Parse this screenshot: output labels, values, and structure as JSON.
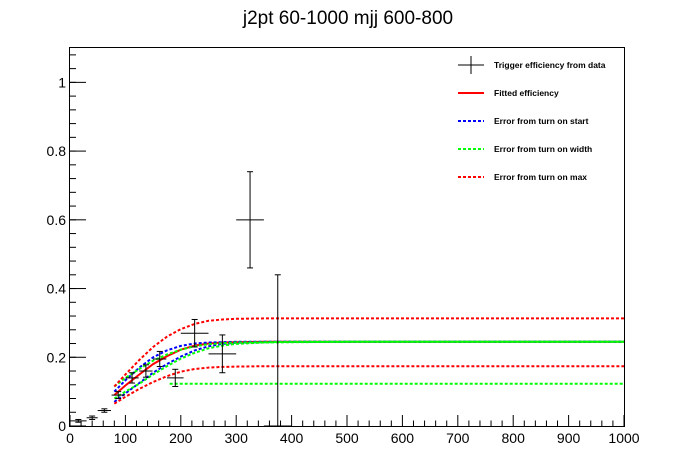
{
  "chart_data": {
    "type": "scatter",
    "title": "j2pt 60-1000 mjj 600-800",
    "xlabel": "",
    "ylabel": "",
    "xlim": [
      0,
      1000
    ],
    "ylim": [
      0,
      1.1
    ],
    "x_ticks": [
      0,
      100,
      200,
      300,
      400,
      500,
      600,
      700,
      800,
      900,
      1000
    ],
    "y_ticks": [
      0,
      0.2,
      0.4,
      0.6,
      0.8,
      1
    ],
    "legend_position": "top-right",
    "grid": false,
    "series": [
      {
        "name": "Trigger efficiency from data",
        "style": "errorbar",
        "color": "#000000",
        "points": [
          {
            "x": 15,
            "y": 0.015,
            "xerr": 15,
            "yerr": 0.004
          },
          {
            "x": 40,
            "y": 0.024,
            "xerr": 10,
            "yerr": 0.005
          },
          {
            "x": 62,
            "y": 0.045,
            "xerr": 12,
            "yerr": 0.005
          },
          {
            "x": 87,
            "y": 0.09,
            "xerr": 12,
            "yerr": 0.01
          },
          {
            "x": 112,
            "y": 0.14,
            "xerr": 12,
            "yerr": 0.015
          },
          {
            "x": 137,
            "y": 0.16,
            "xerr": 12,
            "yerr": 0.018
          },
          {
            "x": 162,
            "y": 0.195,
            "xerr": 12,
            "yerr": 0.022
          },
          {
            "x": 190,
            "y": 0.14,
            "xerr": 15,
            "yerr": 0.025
          },
          {
            "x": 225,
            "y": 0.27,
            "xerr": 25,
            "yerr": 0.04
          },
          {
            "x": 275,
            "y": 0.21,
            "xerr": 25,
            "yerr": 0.055
          },
          {
            "x": 325,
            "y": 0.6,
            "xerr": 25,
            "yerr": 0.14
          },
          {
            "x": 375,
            "y": 0.0,
            "xerr": 25,
            "yerr": 0.44
          }
        ]
      },
      {
        "name": "Fitted efficiency",
        "style": "solid",
        "color": "#ff0000",
        "x": [
          80,
          100,
          125,
          150,
          175,
          200,
          225,
          250,
          275,
          300,
          350,
          400,
          500,
          700,
          1000
        ],
        "y": [
          0.09,
          0.118,
          0.15,
          0.18,
          0.203,
          0.222,
          0.234,
          0.24,
          0.243,
          0.244,
          0.245,
          0.245,
          0.245,
          0.245,
          0.245
        ]
      },
      {
        "name": "Error from turn on start",
        "style": "dotted",
        "color": "#0000ff",
        "x": [
          80,
          100,
          125,
          150,
          175,
          200,
          225,
          250,
          275,
          300,
          350,
          400,
          500,
          700,
          1000
        ],
        "y": [
          0.1,
          0.133,
          0.17,
          0.2,
          0.22,
          0.233,
          0.24,
          0.243,
          0.244,
          0.245,
          0.245,
          0.245,
          0.245,
          0.245,
          0.245
        ]
      },
      {
        "name": "Error from turn on start",
        "style": "dotted",
        "color": "#0000ff",
        "x": [
          80,
          100,
          125,
          150,
          175,
          200,
          225,
          250,
          275,
          300,
          350,
          400,
          500,
          700,
          1000
        ],
        "y": [
          0.07,
          0.095,
          0.125,
          0.155,
          0.18,
          0.202,
          0.22,
          0.232,
          0.239,
          0.242,
          0.244,
          0.245,
          0.245,
          0.245,
          0.245
        ]
      },
      {
        "name": "Error from turn on width",
        "style": "dotted",
        "color": "#00ff00",
        "x": [
          80,
          100,
          125,
          150,
          175,
          200,
          225,
          250,
          275,
          300,
          350,
          400,
          500,
          700,
          1000
        ],
        "y": [
          0.115,
          0.14,
          0.166,
          0.19,
          0.208,
          0.222,
          0.232,
          0.238,
          0.241,
          0.243,
          0.244,
          0.245,
          0.245,
          0.245,
          0.245
        ]
      },
      {
        "name": "Error from turn on width",
        "style": "dotted",
        "color": "#00ff00",
        "x": [
          80,
          100,
          125,
          150,
          175,
          200,
          225,
          250,
          275,
          300,
          350,
          400,
          500,
          700,
          1000
        ],
        "y": [
          0.08,
          0.1,
          0.123,
          0.15,
          0.174,
          0.196,
          0.213,
          0.226,
          0.234,
          0.239,
          0.243,
          0.244,
          0.245,
          0.245,
          0.245
        ]
      },
      {
        "name": "Error from turn on width",
        "style": "dotted",
        "color": "#00ff00",
        "x": [
          180,
          1000
        ],
        "y": [
          0.123,
          0.123
        ]
      },
      {
        "name": "Error from turn on max",
        "style": "dotted",
        "color": "#ff0000",
        "x": [
          80,
          100,
          125,
          150,
          175,
          200,
          225,
          250,
          275,
          300,
          350,
          400,
          500,
          700,
          1000
        ],
        "y": [
          0.115,
          0.15,
          0.192,
          0.23,
          0.26,
          0.282,
          0.297,
          0.306,
          0.31,
          0.312,
          0.313,
          0.313,
          0.313,
          0.313,
          0.313
        ]
      },
      {
        "name": "Error from turn on max",
        "style": "dotted",
        "color": "#ff0000",
        "x": [
          80,
          100,
          125,
          150,
          175,
          200,
          225,
          250,
          275,
          300,
          350,
          400,
          500,
          700,
          1000
        ],
        "y": [
          0.065,
          0.085,
          0.108,
          0.128,
          0.145,
          0.158,
          0.166,
          0.17,
          0.172,
          0.173,
          0.174,
          0.174,
          0.174,
          0.174,
          0.174
        ]
      }
    ],
    "legend": [
      {
        "label": "Trigger efficiency from data",
        "style": "errorbar",
        "color": "#000000"
      },
      {
        "label": "Fitted efficiency",
        "style": "solid",
        "color": "#ff0000"
      },
      {
        "label": "Error from turn on start",
        "style": "dotted",
        "color": "#0000ff"
      },
      {
        "label": "Error from turn on width",
        "style": "dotted",
        "color": "#00ff00"
      },
      {
        "label": "Error from turn on max",
        "style": "dotted",
        "color": "#ff0000"
      }
    ]
  }
}
